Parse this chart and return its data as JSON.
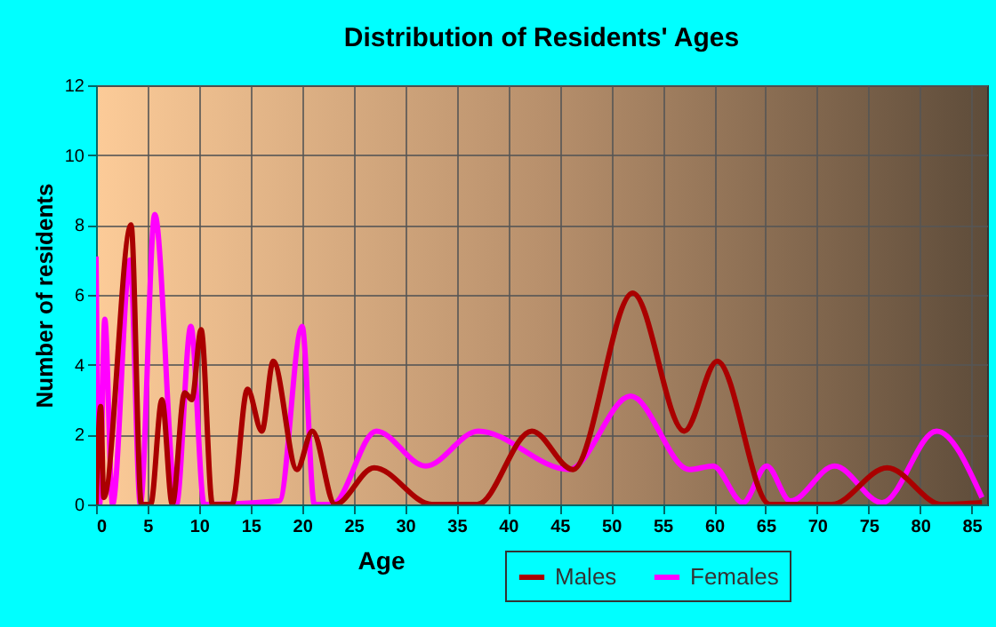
{
  "chart_data": {
    "type": "line",
    "title": "Distribution of Residents' Ages",
    "xlabel": "Age",
    "ylabel": "Number of residents",
    "xlim": [
      0,
      86.5
    ],
    "xticks": [
      0,
      5,
      10,
      15,
      20,
      25,
      30,
      35,
      40,
      45,
      50,
      55,
      60,
      65,
      70,
      75,
      80,
      85
    ],
    "ylim": [
      0,
      12
    ],
    "yticks": [
      0,
      2,
      4,
      6,
      8,
      10,
      12
    ],
    "grid": true,
    "legend": "bottom right",
    "line_style": "solid",
    "series": [
      {
        "name": "Males",
        "color": "#aa0000",
        "x": [
          0,
          0.45,
          0.75,
          3.4,
          4.4,
          5.3,
          6.4,
          7.4,
          8.6,
          9.3,
          10.2,
          11.3,
          13.2,
          14.7,
          16.1,
          17.2,
          19.5,
          21,
          23.2,
          27,
          32.6,
          37,
          42.3,
          46.3,
          52.1,
          57.1,
          60.3,
          65.4,
          71.4,
          76.8,
          82.1,
          86
        ],
        "values": [
          0,
          2.8,
          0.2,
          8,
          0,
          0,
          3,
          0,
          3.2,
          3,
          5,
          0,
          0,
          3.3,
          2.1,
          4.1,
          1,
          2.1,
          0,
          1.05,
          0,
          0,
          2.1,
          1,
          6.05,
          2.1,
          4.1,
          0,
          0,
          1.05,
          0,
          0.05
        ]
      },
      {
        "name": "Females",
        "color": "#ff00ff",
        "x": [
          0,
          0.35,
          0.85,
          1.6,
          3.3,
          4.3,
          5.7,
          7.8,
          9.2,
          10.5,
          17.8,
          20,
          21.2,
          22.9,
          27.2,
          32,
          37.1,
          45.9,
          51.9,
          57.6,
          59.9,
          62.8,
          65.1,
          67.4,
          71.7,
          76.3,
          81.6,
          86
        ],
        "values": [
          7.1,
          0,
          5.3,
          0,
          7,
          0,
          8.3,
          0,
          5.1,
          0,
          0.1,
          5.1,
          0,
          0,
          2.1,
          1.1,
          2.1,
          1,
          3.1,
          1,
          1.1,
          0.05,
          1.1,
          0.1,
          1.1,
          0.05,
          2.1,
          0.2
        ]
      }
    ]
  }
}
